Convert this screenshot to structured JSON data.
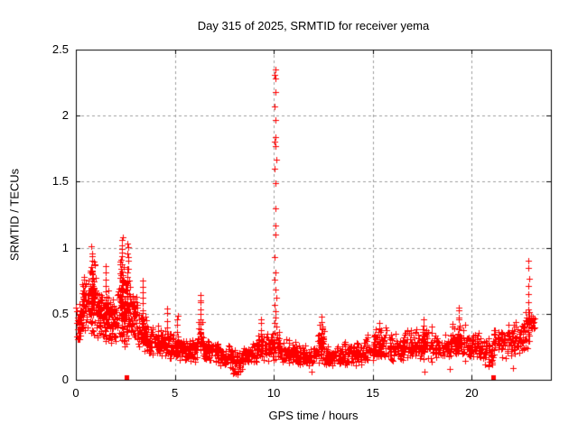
{
  "page": {
    "background": "#ffffff"
  },
  "chart_data": {
    "type": "scatter",
    "title": "Day 315 of 2025, SRMTID for receiver yema",
    "xlabel": "GPS time / hours",
    "ylabel": "SRMTID / TECUs",
    "xlim": [
      0,
      24
    ],
    "ylim": [
      0,
      2.5
    ],
    "xticks": [
      0,
      5,
      10,
      15,
      20
    ],
    "xtick_labels": [
      "0",
      "5",
      "10",
      "15",
      "20"
    ],
    "yticks": [
      0,
      0.5,
      1,
      1.5,
      2,
      2.5
    ],
    "ytick_labels": [
      "0",
      "0.5",
      "1",
      "1.5",
      "2",
      "2.5"
    ],
    "grid": {
      "show": true,
      "color": "#9e9e9e",
      "dash": [
        3,
        3
      ]
    },
    "axis_color": "#000000",
    "marker_color": "#ff0000",
    "series": [
      {
        "name": "srmtid-plus-markers",
        "marker": "plus",
        "color": "#ff0000",
        "marker_size": 7,
        "cloud": {
          "seed": 1315,
          "segments": [
            [
              0.0,
              0.3,
              40,
              0.45,
              0.15
            ],
            [
              0.3,
              0.7,
              55,
              0.55,
              0.2
            ],
            [
              0.7,
              1.0,
              50,
              0.62,
              0.25
            ],
            [
              1.0,
              1.3,
              45,
              0.5,
              0.16
            ],
            [
              1.3,
              1.7,
              50,
              0.48,
              0.18
            ],
            [
              1.7,
              2.1,
              50,
              0.45,
              0.17
            ],
            [
              2.1,
              2.45,
              55,
              0.62,
              0.3
            ],
            [
              2.45,
              2.75,
              50,
              0.58,
              0.3
            ],
            [
              2.75,
              3.1,
              45,
              0.48,
              0.18
            ],
            [
              3.1,
              3.6,
              50,
              0.35,
              0.13
            ],
            [
              3.6,
              4.2,
              55,
              0.3,
              0.1
            ],
            [
              4.2,
              4.8,
              55,
              0.27,
              0.11
            ],
            [
              4.8,
              5.5,
              60,
              0.24,
              0.09
            ],
            [
              5.5,
              6.1,
              55,
              0.22,
              0.08
            ],
            [
              6.1,
              6.45,
              30,
              0.3,
              0.14
            ],
            [
              6.45,
              7.2,
              60,
              0.22,
              0.08
            ],
            [
              7.2,
              7.9,
              60,
              0.18,
              0.08
            ],
            [
              7.9,
              8.4,
              45,
              0.14,
              0.08
            ],
            [
              8.4,
              9.2,
              65,
              0.2,
              0.08
            ],
            [
              9.2,
              9.6,
              35,
              0.25,
              0.1
            ],
            [
              9.6,
              10.4,
              70,
              0.26,
              0.1
            ],
            [
              10.4,
              11.2,
              65,
              0.22,
              0.09
            ],
            [
              11.2,
              12.2,
              80,
              0.18,
              0.08
            ],
            [
              12.2,
              12.55,
              30,
              0.28,
              0.13
            ],
            [
              12.55,
              13.5,
              75,
              0.18,
              0.07
            ],
            [
              13.5,
              14.5,
              80,
              0.2,
              0.08
            ],
            [
              14.5,
              15.1,
              50,
              0.24,
              0.1
            ],
            [
              15.1,
              15.7,
              50,
              0.27,
              0.12
            ],
            [
              15.7,
              16.6,
              70,
              0.24,
              0.1
            ],
            [
              16.6,
              17.4,
              65,
              0.26,
              0.11
            ],
            [
              17.4,
              18.0,
              50,
              0.27,
              0.12
            ],
            [
              18.0,
              19.0,
              75,
              0.24,
              0.1
            ],
            [
              19.0,
              19.7,
              55,
              0.29,
              0.13
            ],
            [
              19.7,
              20.5,
              60,
              0.25,
              0.1
            ],
            [
              20.5,
              21.1,
              45,
              0.22,
              0.1
            ],
            [
              21.1,
              21.9,
              60,
              0.3,
              0.13
            ],
            [
              21.9,
              22.6,
              55,
              0.32,
              0.13
            ],
            [
              22.6,
              23.0,
              40,
              0.38,
              0.14
            ],
            [
              23.0,
              23.2,
              12,
              0.45,
              0.09
            ]
          ]
        },
        "streaks": [
          [
            0.8,
            0.35,
            1.0,
            20
          ],
          [
            1.52,
            0.3,
            0.85,
            14
          ],
          [
            2.33,
            0.35,
            1.08,
            24
          ],
          [
            2.62,
            0.32,
            1.04,
            20
          ],
          [
            3.38,
            0.28,
            0.75,
            12
          ],
          [
            4.62,
            0.22,
            0.55,
            8
          ],
          [
            5.15,
            0.2,
            0.5,
            8
          ],
          [
            6.3,
            0.24,
            0.65,
            12
          ],
          [
            9.35,
            0.2,
            0.45,
            8
          ],
          [
            12.42,
            0.18,
            0.47,
            10
          ],
          [
            15.35,
            0.2,
            0.42,
            8
          ],
          [
            17.55,
            0.22,
            0.45,
            8
          ],
          [
            19.35,
            0.22,
            0.55,
            10
          ],
          [
            22.86,
            0.35,
            0.9,
            10
          ]
        ],
        "spike_points": [
          [
            10.07,
            2.35
          ],
          [
            10.04,
            2.31
          ],
          [
            10.1,
            2.28
          ],
          [
            10.07,
            2.18
          ],
          [
            10.06,
            2.07
          ],
          [
            10.08,
            1.97
          ],
          [
            10.1,
            1.84
          ],
          [
            10.04,
            1.8
          ],
          [
            10.08,
            1.77
          ],
          [
            10.12,
            1.67
          ],
          [
            10.06,
            1.6
          ],
          [
            10.08,
            1.49
          ],
          [
            10.1,
            1.3
          ],
          [
            10.07,
            1.17
          ],
          [
            10.1,
            1.1
          ],
          [
            10.06,
            0.93
          ],
          [
            10.1,
            0.81
          ],
          [
            10.04,
            0.76
          ],
          [
            10.08,
            0.68
          ],
          [
            10.12,
            0.62
          ],
          [
            10.05,
            0.57
          ],
          [
            10.1,
            0.52
          ],
          [
            10.07,
            0.47
          ],
          [
            10.04,
            0.43
          ],
          [
            10.11,
            0.4
          ]
        ],
        "outlier_points": [
          [
            7.95,
            0.05
          ],
          [
            8.18,
            0.04
          ],
          [
            8.32,
            0.07
          ],
          [
            11.9,
            0.06
          ],
          [
            17.6,
            0.06
          ],
          [
            18.9,
            0.08
          ],
          [
            20.85,
            0.1
          ],
          [
            22.1,
            0.09
          ]
        ]
      },
      {
        "name": "baseline-flag-squares",
        "marker": "filled-square",
        "color": "#ff0000",
        "marker_size": 5,
        "points": [
          [
            2.55,
            0.02
          ],
          [
            21.1,
            0.02
          ]
        ]
      }
    ]
  }
}
